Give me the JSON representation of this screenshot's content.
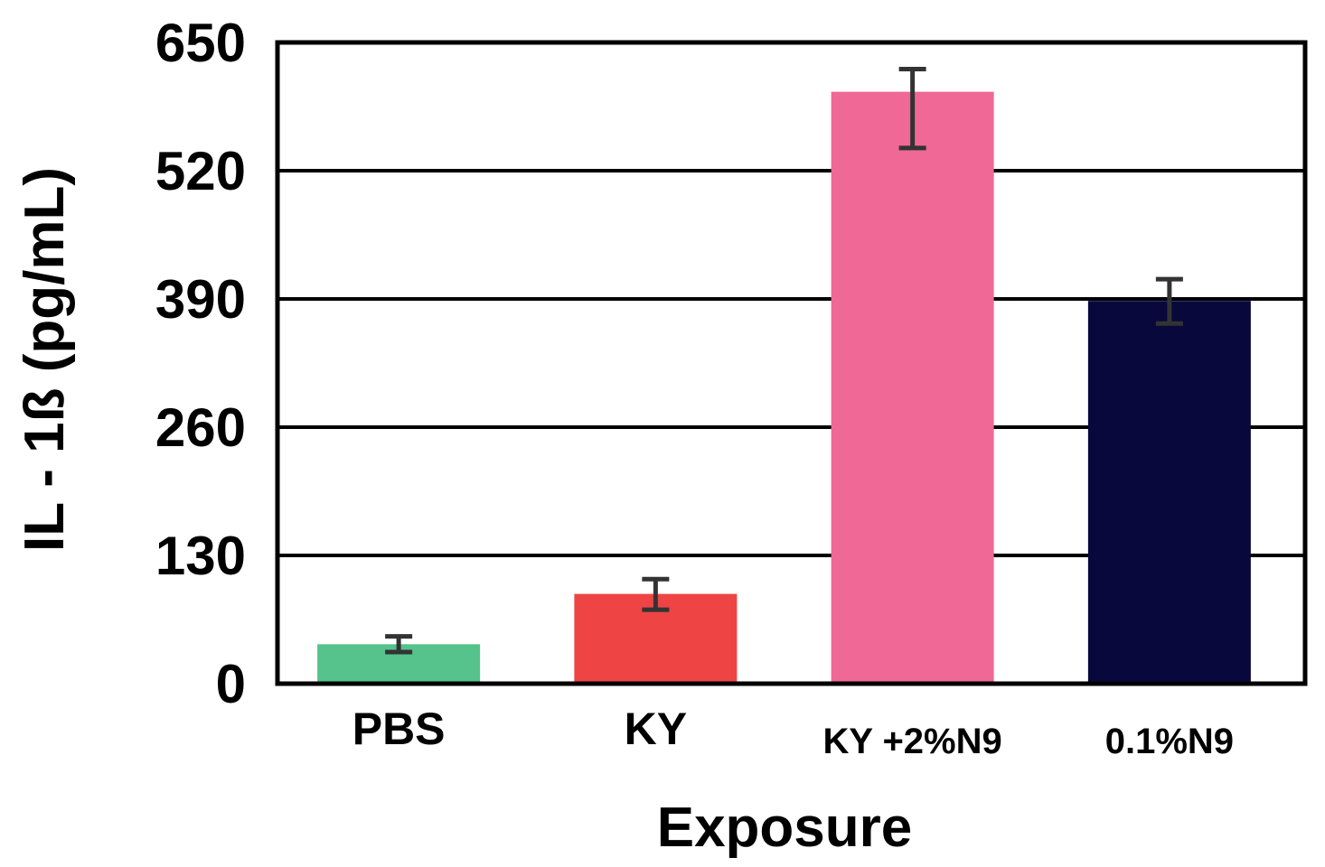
{
  "chart_data": {
    "type": "bar",
    "title": "",
    "xlabel": "Exposure",
    "ylabel": "IL - 1ß (pg/mL)",
    "ylim": [
      0,
      650
    ],
    "yticks": [
      "0",
      "130",
      "260",
      "390",
      "520",
      "650"
    ],
    "grid": true,
    "legend": "none",
    "categories": [
      "PBS",
      "KY",
      "KY +2%N9",
      "0.1%N9"
    ],
    "values": [
      40,
      91,
      600,
      388
    ],
    "error_low": [
      32,
      75,
      543,
      365
    ],
    "error_high": [
      48,
      106,
      623,
      410
    ],
    "colors": [
      "#55c38b",
      "#ef4444",
      "#f06896",
      "#08083c"
    ],
    "error_color": "#333333"
  }
}
